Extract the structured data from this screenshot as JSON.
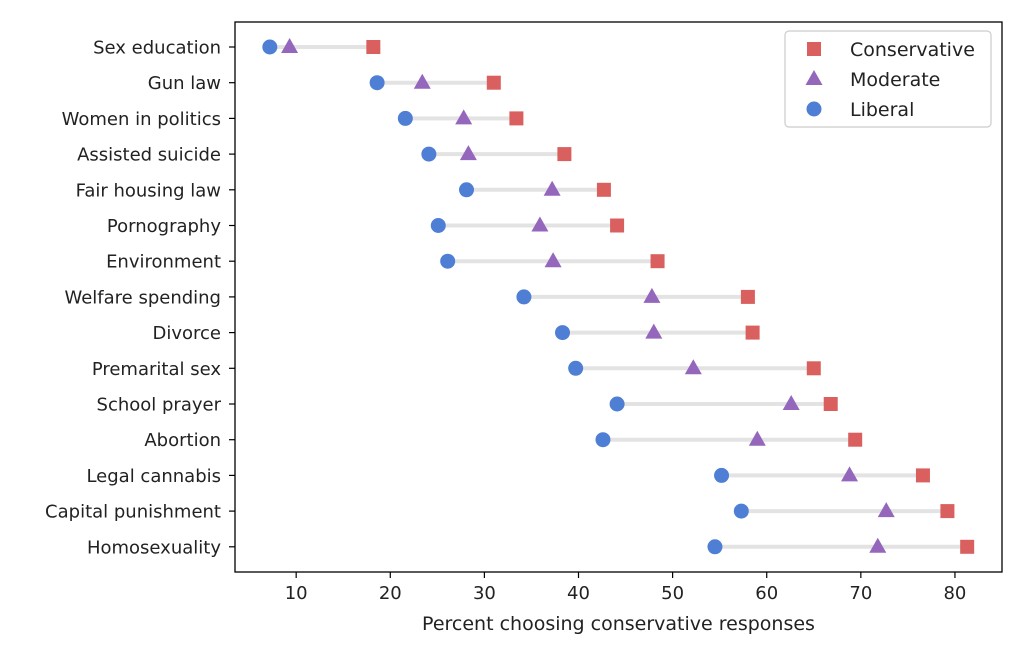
{
  "chart_data": {
    "type": "dot",
    "xlabel": "Percent choosing conservative responses",
    "ylabel": "",
    "xlim": [
      3.5,
      85
    ],
    "xticks": [
      10,
      20,
      30,
      40,
      50,
      60,
      70,
      80
    ],
    "grid": false,
    "legend_position": "top-right",
    "categories": [
      "Sex education",
      "Gun law",
      "Women in politics",
      "Assisted suicide",
      "Fair housing law",
      "Pornography",
      "Environment",
      "Welfare spending",
      "Divorce",
      "Premarital sex",
      "School prayer",
      "Abortion",
      "Legal cannabis",
      "Capital punishment",
      "Homosexuality"
    ],
    "series": [
      {
        "name": "Conservative",
        "marker": "square",
        "color": "#d9605e",
        "values": [
          18.2,
          31.0,
          33.4,
          38.5,
          42.7,
          44.1,
          48.4,
          58.0,
          58.5,
          65.0,
          66.8,
          69.4,
          76.6,
          79.2,
          81.3
        ]
      },
      {
        "name": "Moderate",
        "marker": "triangle",
        "color": "#9467bd",
        "values": [
          9.3,
          23.4,
          27.8,
          28.3,
          37.2,
          35.9,
          37.3,
          47.8,
          48.0,
          52.2,
          62.6,
          59.0,
          68.8,
          72.7,
          71.8
        ]
      },
      {
        "name": "Liberal",
        "marker": "circle",
        "color": "#4f7fd4",
        "values": [
          7.2,
          18.6,
          21.6,
          24.1,
          28.1,
          25.1,
          26.1,
          34.2,
          38.3,
          39.7,
          44.1,
          42.6,
          55.2,
          57.3,
          54.5
        ]
      }
    ],
    "range_line_color": "#e3e3e3",
    "legend_order": [
      "Conservative",
      "Moderate",
      "Liberal"
    ]
  }
}
